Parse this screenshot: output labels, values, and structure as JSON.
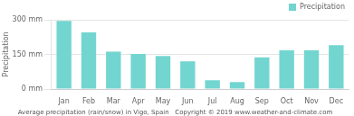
{
  "chart_data": {
    "type": "bar",
    "categories": [
      "Jan",
      "Feb",
      "Mar",
      "Apr",
      "May",
      "Jun",
      "Jul",
      "Aug",
      "Sep",
      "Oct",
      "Nov",
      "Dec"
    ],
    "series": [
      {
        "name": "Precipitation",
        "color": "#72d5d0",
        "values": [
          295,
          245,
          162,
          152,
          143,
          120,
          38,
          30,
          137,
          168,
          168,
          190
        ]
      }
    ],
    "ylabel": "Precipitation",
    "caption": "Average precipitation (rain/snow) in Vigo, Spain   Copyright © 2019 www.weather-and-climate.com",
    "ylim": [
      0,
      300
    ],
    "yticks": [
      {
        "value": 0,
        "label": "0 mm"
      },
      {
        "value": 150,
        "label": "150 mm"
      },
      {
        "value": 300,
        "label": "300 mm"
      }
    ],
    "grid": true,
    "legend": "upper right"
  }
}
